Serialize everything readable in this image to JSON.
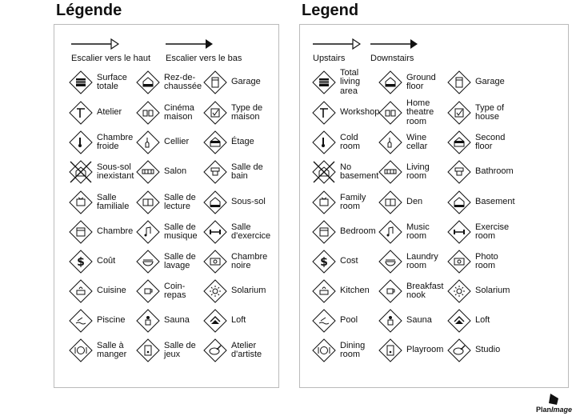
{
  "legend_fr": {
    "title": "Légende",
    "stairs_up": "Escalier vers le haut",
    "stairs_down": "Escalier vers le bas",
    "items": [
      {
        "label": "Surface\ntotale",
        "icon": "total-area"
      },
      {
        "label": "Rez-de-\nchaussée",
        "icon": "ground-floor"
      },
      {
        "label": "Garage",
        "icon": "garage"
      },
      {
        "label": "Atelier",
        "icon": "hammer"
      },
      {
        "label": "Cinéma\nmaison",
        "icon": "home-theatre"
      },
      {
        "label": "Type de\nmaison",
        "icon": "house-type"
      },
      {
        "label": "Chambre\nfroide",
        "icon": "thermometer"
      },
      {
        "label": "Cellier",
        "icon": "wine"
      },
      {
        "label": "Étage",
        "icon": "second-floor"
      },
      {
        "label": "Sous-sol\ninexistant",
        "icon": "no-basement"
      },
      {
        "label": "Salon",
        "icon": "sofa"
      },
      {
        "label": "Salle de\nbain",
        "icon": "toilet"
      },
      {
        "label": "Salle\nfamiliale",
        "icon": "tv"
      },
      {
        "label": "Salle de\nlecture",
        "icon": "book"
      },
      {
        "label": "Sous-sol",
        "icon": "basement"
      },
      {
        "label": "Chambre",
        "icon": "bed"
      },
      {
        "label": "Salle de\nmusique",
        "icon": "music"
      },
      {
        "label": "Salle\nd'exercice",
        "icon": "dumbbell"
      },
      {
        "label": "Coût",
        "icon": "dollar"
      },
      {
        "label": "Salle de\nlavage",
        "icon": "laundry"
      },
      {
        "label": "Chambre\nnoire",
        "icon": "camera"
      },
      {
        "label": "Cuisine",
        "icon": "cooking-pot"
      },
      {
        "label": "Coin-\nrepas",
        "icon": "coffee-cup"
      },
      {
        "label": "Solarium",
        "icon": "sun"
      },
      {
        "label": "Piscine",
        "icon": "pool"
      },
      {
        "label": "Sauna",
        "icon": "sauna"
      },
      {
        "label": "Loft",
        "icon": "loft"
      },
      {
        "label": "Salle à\nmanger",
        "icon": "plate"
      },
      {
        "label": "Salle de\njeux",
        "icon": "game"
      },
      {
        "label": "Atelier\nd'artiste",
        "icon": "palette"
      }
    ]
  },
  "legend_en": {
    "title": "Legend",
    "stairs_up": "Upstairs",
    "stairs_down": "Downstairs",
    "items": [
      {
        "label": "Total\nliving\narea",
        "icon": "total-area"
      },
      {
        "label": "Ground\nfloor",
        "icon": "ground-floor"
      },
      {
        "label": "Garage",
        "icon": "garage"
      },
      {
        "label": "Workshop",
        "icon": "hammer"
      },
      {
        "label": "Home\ntheatre\nroom",
        "icon": "home-theatre"
      },
      {
        "label": "Type of\nhouse",
        "icon": "house-type"
      },
      {
        "label": "Cold\nroom",
        "icon": "thermometer"
      },
      {
        "label": "Wine\ncellar",
        "icon": "wine"
      },
      {
        "label": "Second\nfloor",
        "icon": "second-floor"
      },
      {
        "label": "No\nbasement",
        "icon": "no-basement"
      },
      {
        "label": "Living\nroom",
        "icon": "sofa"
      },
      {
        "label": "Bathroom",
        "icon": "toilet"
      },
      {
        "label": "Family\nroom",
        "icon": "tv"
      },
      {
        "label": "Den",
        "icon": "book"
      },
      {
        "label": "Basement",
        "icon": "basement"
      },
      {
        "label": "Bedroom",
        "icon": "bed"
      },
      {
        "label": "Music\nroom",
        "icon": "music"
      },
      {
        "label": "Exercise\nroom",
        "icon": "dumbbell"
      },
      {
        "label": "Cost",
        "icon": "dollar"
      },
      {
        "label": "Laundry\nroom",
        "icon": "laundry"
      },
      {
        "label": "Photo\nroom",
        "icon": "camera"
      },
      {
        "label": "Kitchen",
        "icon": "cooking-pot"
      },
      {
        "label": "Breakfast\nnook",
        "icon": "coffee-cup"
      },
      {
        "label": "Solarium",
        "icon": "sun"
      },
      {
        "label": "Pool",
        "icon": "pool"
      },
      {
        "label": "Sauna",
        "icon": "sauna"
      },
      {
        "label": "Loft",
        "icon": "loft"
      },
      {
        "label": "Dining\nroom",
        "icon": "plate"
      },
      {
        "label": "Playroom",
        "icon": "game"
      },
      {
        "label": "Studio",
        "icon": "palette"
      }
    ]
  },
  "logo": {
    "text": "PlanImage",
    "icon": "house-logo"
  }
}
